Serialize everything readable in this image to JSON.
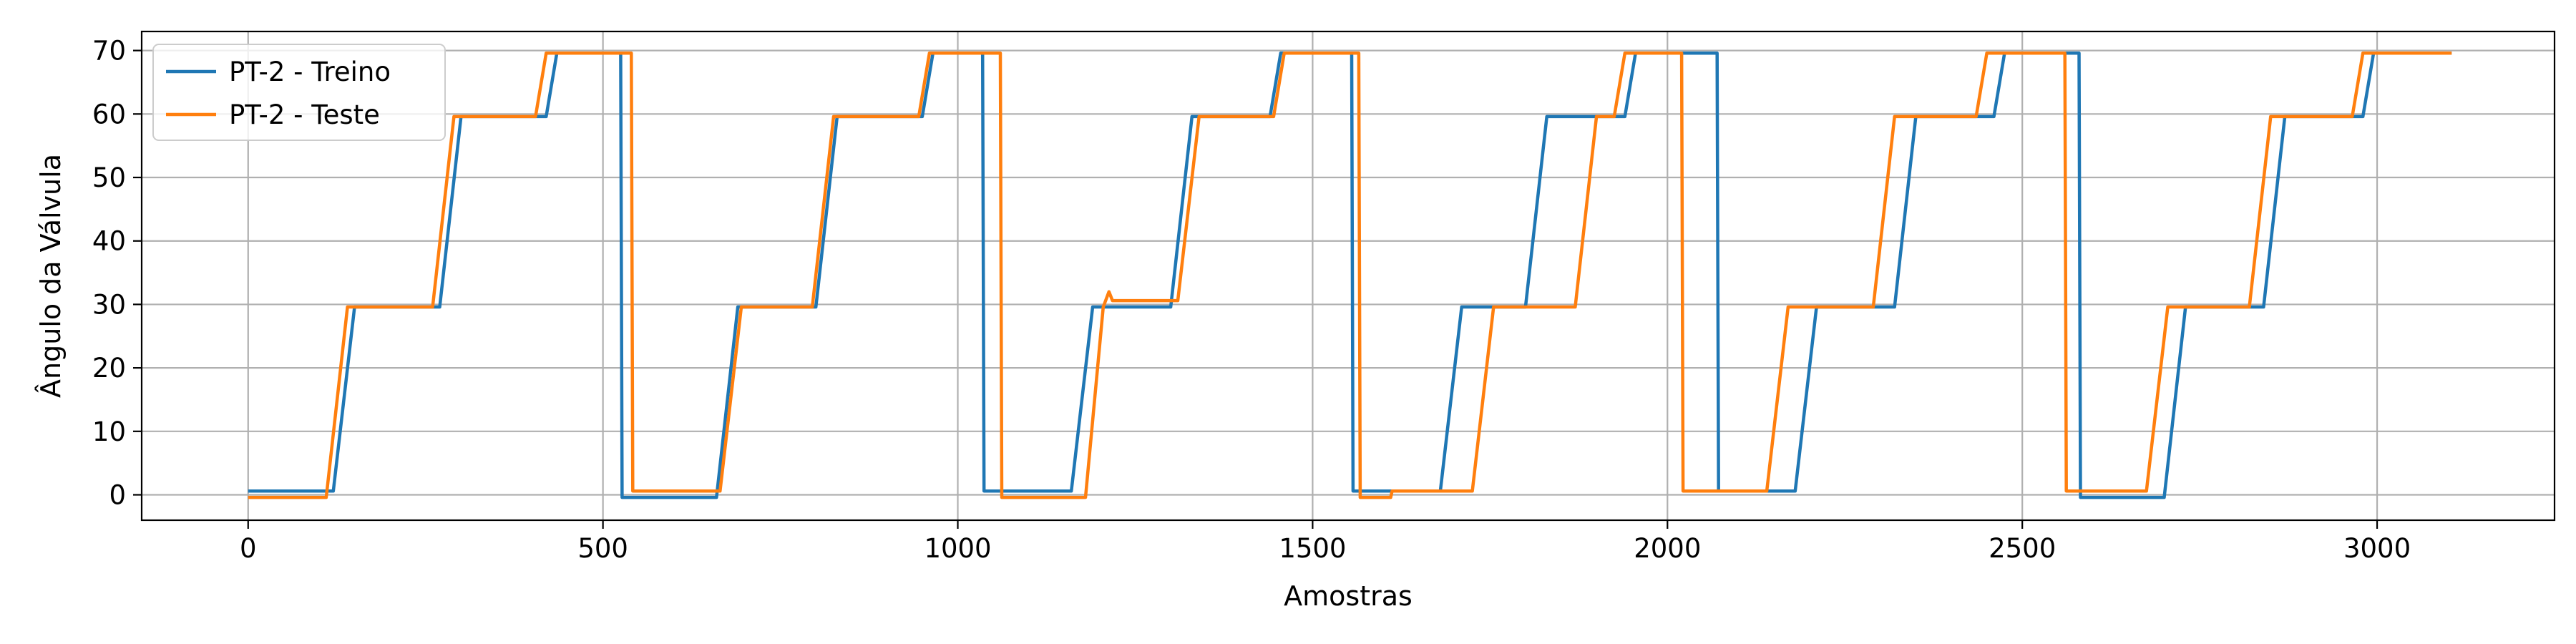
{
  "chart_data": {
    "type": "line",
    "title": "",
    "xlabel": "Amostras",
    "ylabel": "Ângulo da Válvula",
    "xlim": [
      -150,
      3250
    ],
    "ylim": [
      -4,
      73
    ],
    "xticks": [
      0,
      500,
      1000,
      1500,
      2000,
      2500,
      3000
    ],
    "yticks": [
      0,
      10,
      20,
      30,
      40,
      50,
      60,
      70
    ],
    "grid": true,
    "legend": "top-left",
    "series": [
      {
        "name": "PT-2 - Treino",
        "color": "#1f77b4",
        "points": [
          [
            0,
            0.6
          ],
          [
            120,
            0.6
          ],
          [
            150,
            29.6
          ],
          [
            270,
            29.6
          ],
          [
            300,
            59.6
          ],
          [
            420,
            59.6
          ],
          [
            435,
            69.6
          ],
          [
            525,
            69.6
          ],
          [
            527,
            -0.4
          ],
          [
            660,
            -0.4
          ],
          [
            690,
            29.6
          ],
          [
            800,
            29.6
          ],
          [
            830,
            59.6
          ],
          [
            950,
            59.6
          ],
          [
            965,
            69.6
          ],
          [
            1035,
            69.6
          ],
          [
            1037,
            0.6
          ],
          [
            1160,
            0.6
          ],
          [
            1190,
            29.6
          ],
          [
            1300,
            29.6
          ],
          [
            1330,
            59.6
          ],
          [
            1440,
            59.6
          ],
          [
            1455,
            69.6
          ],
          [
            1555,
            69.6
          ],
          [
            1557,
            0.6
          ],
          [
            1680,
            0.6
          ],
          [
            1710,
            29.6
          ],
          [
            1800,
            29.6
          ],
          [
            1830,
            59.6
          ],
          [
            1940,
            59.6
          ],
          [
            1955,
            69.6
          ],
          [
            2070,
            69.6
          ],
          [
            2072,
            0.6
          ],
          [
            2180,
            0.6
          ],
          [
            2210,
            29.6
          ],
          [
            2320,
            29.6
          ],
          [
            2350,
            59.6
          ],
          [
            2460,
            59.6
          ],
          [
            2475,
            69.6
          ],
          [
            2580,
            69.6
          ],
          [
            2582,
            -0.4
          ],
          [
            2700,
            -0.4
          ],
          [
            2730,
            29.6
          ],
          [
            2840,
            29.6
          ],
          [
            2870,
            59.6
          ],
          [
            2980,
            59.6
          ],
          [
            2995,
            69.6
          ],
          [
            3105,
            69.6
          ]
        ]
      },
      {
        "name": "PT-2 - Teste",
        "color": "#ff7f0e",
        "points": [
          [
            0,
            -0.4
          ],
          [
            110,
            -0.4
          ],
          [
            140,
            29.6
          ],
          [
            260,
            29.6
          ],
          [
            290,
            59.6
          ],
          [
            405,
            59.6
          ],
          [
            420,
            69.6
          ],
          [
            540,
            69.6
          ],
          [
            542,
            0.6
          ],
          [
            665,
            0.6
          ],
          [
            695,
            29.6
          ],
          [
            795,
            29.6
          ],
          [
            825,
            59.6
          ],
          [
            945,
            59.6
          ],
          [
            960,
            69.6
          ],
          [
            1060,
            69.6
          ],
          [
            1062,
            -0.4
          ],
          [
            1180,
            -0.4
          ],
          [
            1205,
            29.6
          ],
          [
            1213,
            32.0
          ],
          [
            1218,
            30.6
          ],
          [
            1310,
            30.6
          ],
          [
            1340,
            59.6
          ],
          [
            1445,
            59.6
          ],
          [
            1460,
            69.6
          ],
          [
            1565,
            69.6
          ],
          [
            1567,
            -0.4
          ],
          [
            1610,
            -0.4
          ],
          [
            1612,
            0.6
          ],
          [
            1725,
            0.6
          ],
          [
            1755,
            29.6
          ],
          [
            1870,
            29.6
          ],
          [
            1900,
            59.6
          ],
          [
            1925,
            59.6
          ],
          [
            1940,
            69.6
          ],
          [
            2020,
            69.6
          ],
          [
            2022,
            0.6
          ],
          [
            2140,
            0.6
          ],
          [
            2170,
            29.6
          ],
          [
            2290,
            29.6
          ],
          [
            2320,
            59.6
          ],
          [
            2435,
            59.6
          ],
          [
            2450,
            69.6
          ],
          [
            2560,
            69.6
          ],
          [
            2562,
            0.6
          ],
          [
            2675,
            0.6
          ],
          [
            2705,
            29.6
          ],
          [
            2820,
            29.6
          ],
          [
            2850,
            59.6
          ],
          [
            2965,
            59.6
          ],
          [
            2980,
            69.6
          ],
          [
            3105,
            69.6
          ]
        ]
      }
    ]
  }
}
